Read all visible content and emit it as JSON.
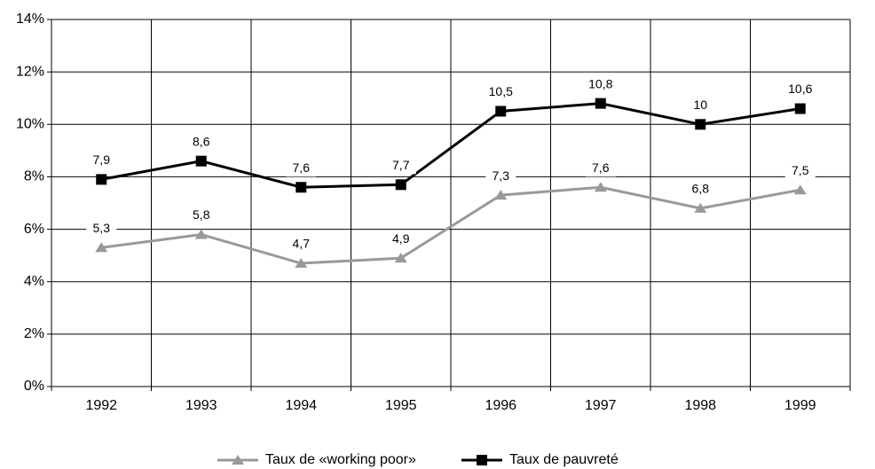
{
  "chart_data": {
    "type": "line",
    "categories": [
      "1992",
      "1993",
      "1994",
      "1995",
      "1996",
      "1997",
      "1998",
      "1999"
    ],
    "series": [
      {
        "name": "Taux de «working poor»",
        "color": "#999999",
        "marker": "triangle",
        "values": [
          5.3,
          5.8,
          4.7,
          4.9,
          7.3,
          7.6,
          6.8,
          7.5
        ],
        "value_labels": [
          "5,3",
          "5,8",
          "4,7",
          "4,9",
          "7,3",
          "7,6",
          "6,8",
          "7,5"
        ]
      },
      {
        "name": "Taux de pauvreté",
        "color": "#000000",
        "marker": "square",
        "values": [
          7.9,
          8.6,
          7.6,
          7.7,
          10.5,
          10.8,
          10,
          10.6
        ],
        "value_labels": [
          "7,9",
          "8,6",
          "7,6",
          "7,7",
          "10,5",
          "10,8",
          "10",
          "10,6"
        ]
      }
    ],
    "ylim": [
      0,
      14
    ],
    "yticks": [
      {
        "value": 0,
        "label": "0%"
      },
      {
        "value": 2,
        "label": "2%"
      },
      {
        "value": 4,
        "label": "4%"
      },
      {
        "value": 6,
        "label": "6%"
      },
      {
        "value": 8,
        "label": "8%"
      },
      {
        "value": 10,
        "label": "10%"
      },
      {
        "value": 12,
        "label": "12%"
      },
      {
        "value": 14,
        "label": "14%"
      }
    ],
    "grid": true,
    "legend": "bottom"
  }
}
